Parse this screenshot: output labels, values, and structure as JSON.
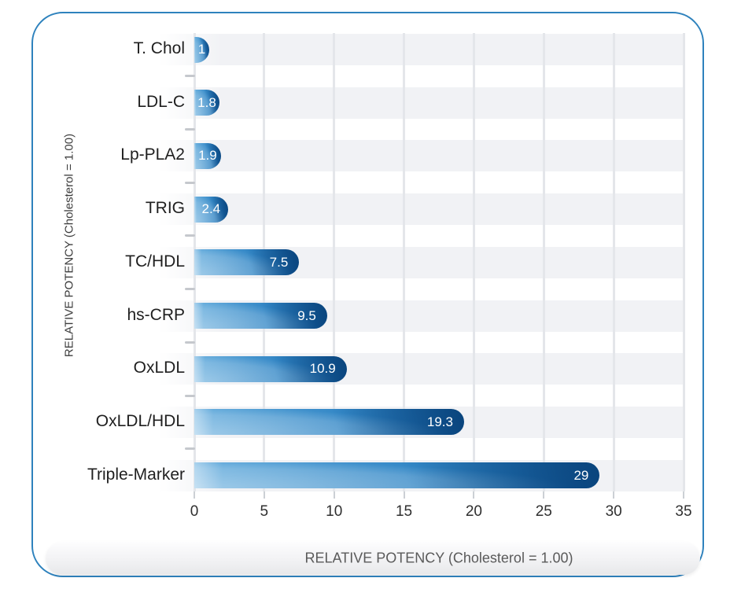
{
  "frame": {
    "border_color": "#2e82bd"
  },
  "y_axis": {
    "title": "RELATIVE POTENCY (Cholesterol = 1.00)"
  },
  "x_axis": {
    "title": "RELATIVE POTENCY (Cholesterol = 1.00)",
    "tick_labels": [
      "0",
      "5",
      "10",
      "15",
      "20",
      "25",
      "30",
      "35"
    ]
  },
  "chart_data": {
    "type": "bar",
    "orientation": "horizontal",
    "title": "",
    "xlabel": "RELATIVE POTENCY (Cholesterol = 1.00)",
    "ylabel": "RELATIVE POTENCY (Cholesterol = 1.00)",
    "categories": [
      "T. Chol",
      "LDL-C",
      "Lp-PLA2",
      "TRIG",
      "TC/HDL",
      "hs-CRP",
      "OxLDL",
      "OxLDL/HDL",
      "Triple-Marker"
    ],
    "values": [
      1,
      1.8,
      1.9,
      2.4,
      7.5,
      9.5,
      10.9,
      19.3,
      29
    ],
    "value_labels": [
      "1",
      "1.8",
      "1.9",
      "2.4",
      "7.5",
      "9.5",
      "10.9",
      "19.3",
      "29"
    ],
    "xlim": [
      0,
      35
    ],
    "x_ticks": [
      0,
      5,
      10,
      15,
      20,
      25,
      30,
      35
    ],
    "grid": true,
    "legend": "none",
    "row_band_color": "#f1f2f5",
    "gridline_color": "#e4e6ea",
    "bar_color_start": "#5fa8da",
    "bar_color_end": "#0f5594",
    "value_text_color": "#ffffff"
  }
}
